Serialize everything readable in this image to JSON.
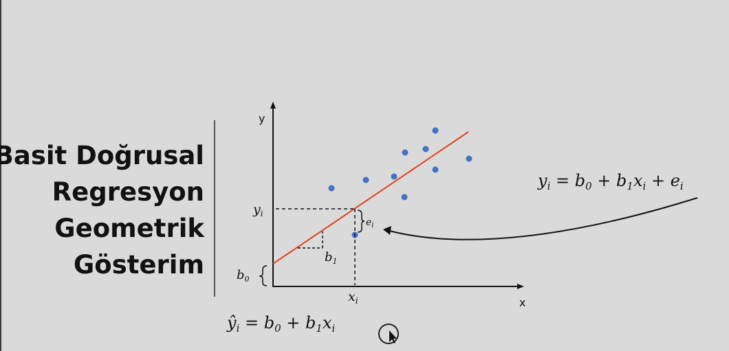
{
  "title_lines": [
    "Basit Doğrusal",
    "Regresyon",
    "Geometrik",
    "Gösterim"
  ],
  "axes": {
    "x_label": "x",
    "y_label": "y"
  },
  "labels": {
    "yi": "y",
    "yi_sub": "i",
    "xi": "x",
    "xi_sub": "i",
    "ei": "e",
    "ei_sub": "i",
    "b1": "b",
    "b1_sub": "1",
    "b0": "b",
    "b0_sub": "0"
  },
  "equations": {
    "observed": {
      "lhs": "y",
      "lhs_sub": "i",
      "eq": " = ",
      "b0": "b",
      "b0_sub": "0",
      "plus1": " + ",
      "b1": "b",
      "b1_sub": "1",
      "x": "x",
      "x_sub": "i",
      "plus2": " + ",
      "e": "e",
      "e_sub": "i"
    },
    "fitted": {
      "lhs": "ŷ",
      "lhs_sub": "i",
      "eq": " = ",
      "b0": "b",
      "b0_sub": "0",
      "plus1": " + ",
      "b1": "b",
      "b1_sub": "1",
      "x": "x",
      "x_sub": "i"
    }
  },
  "colors": {
    "points": "#4472c4",
    "line": "#e0401f",
    "text": "#111111"
  }
}
